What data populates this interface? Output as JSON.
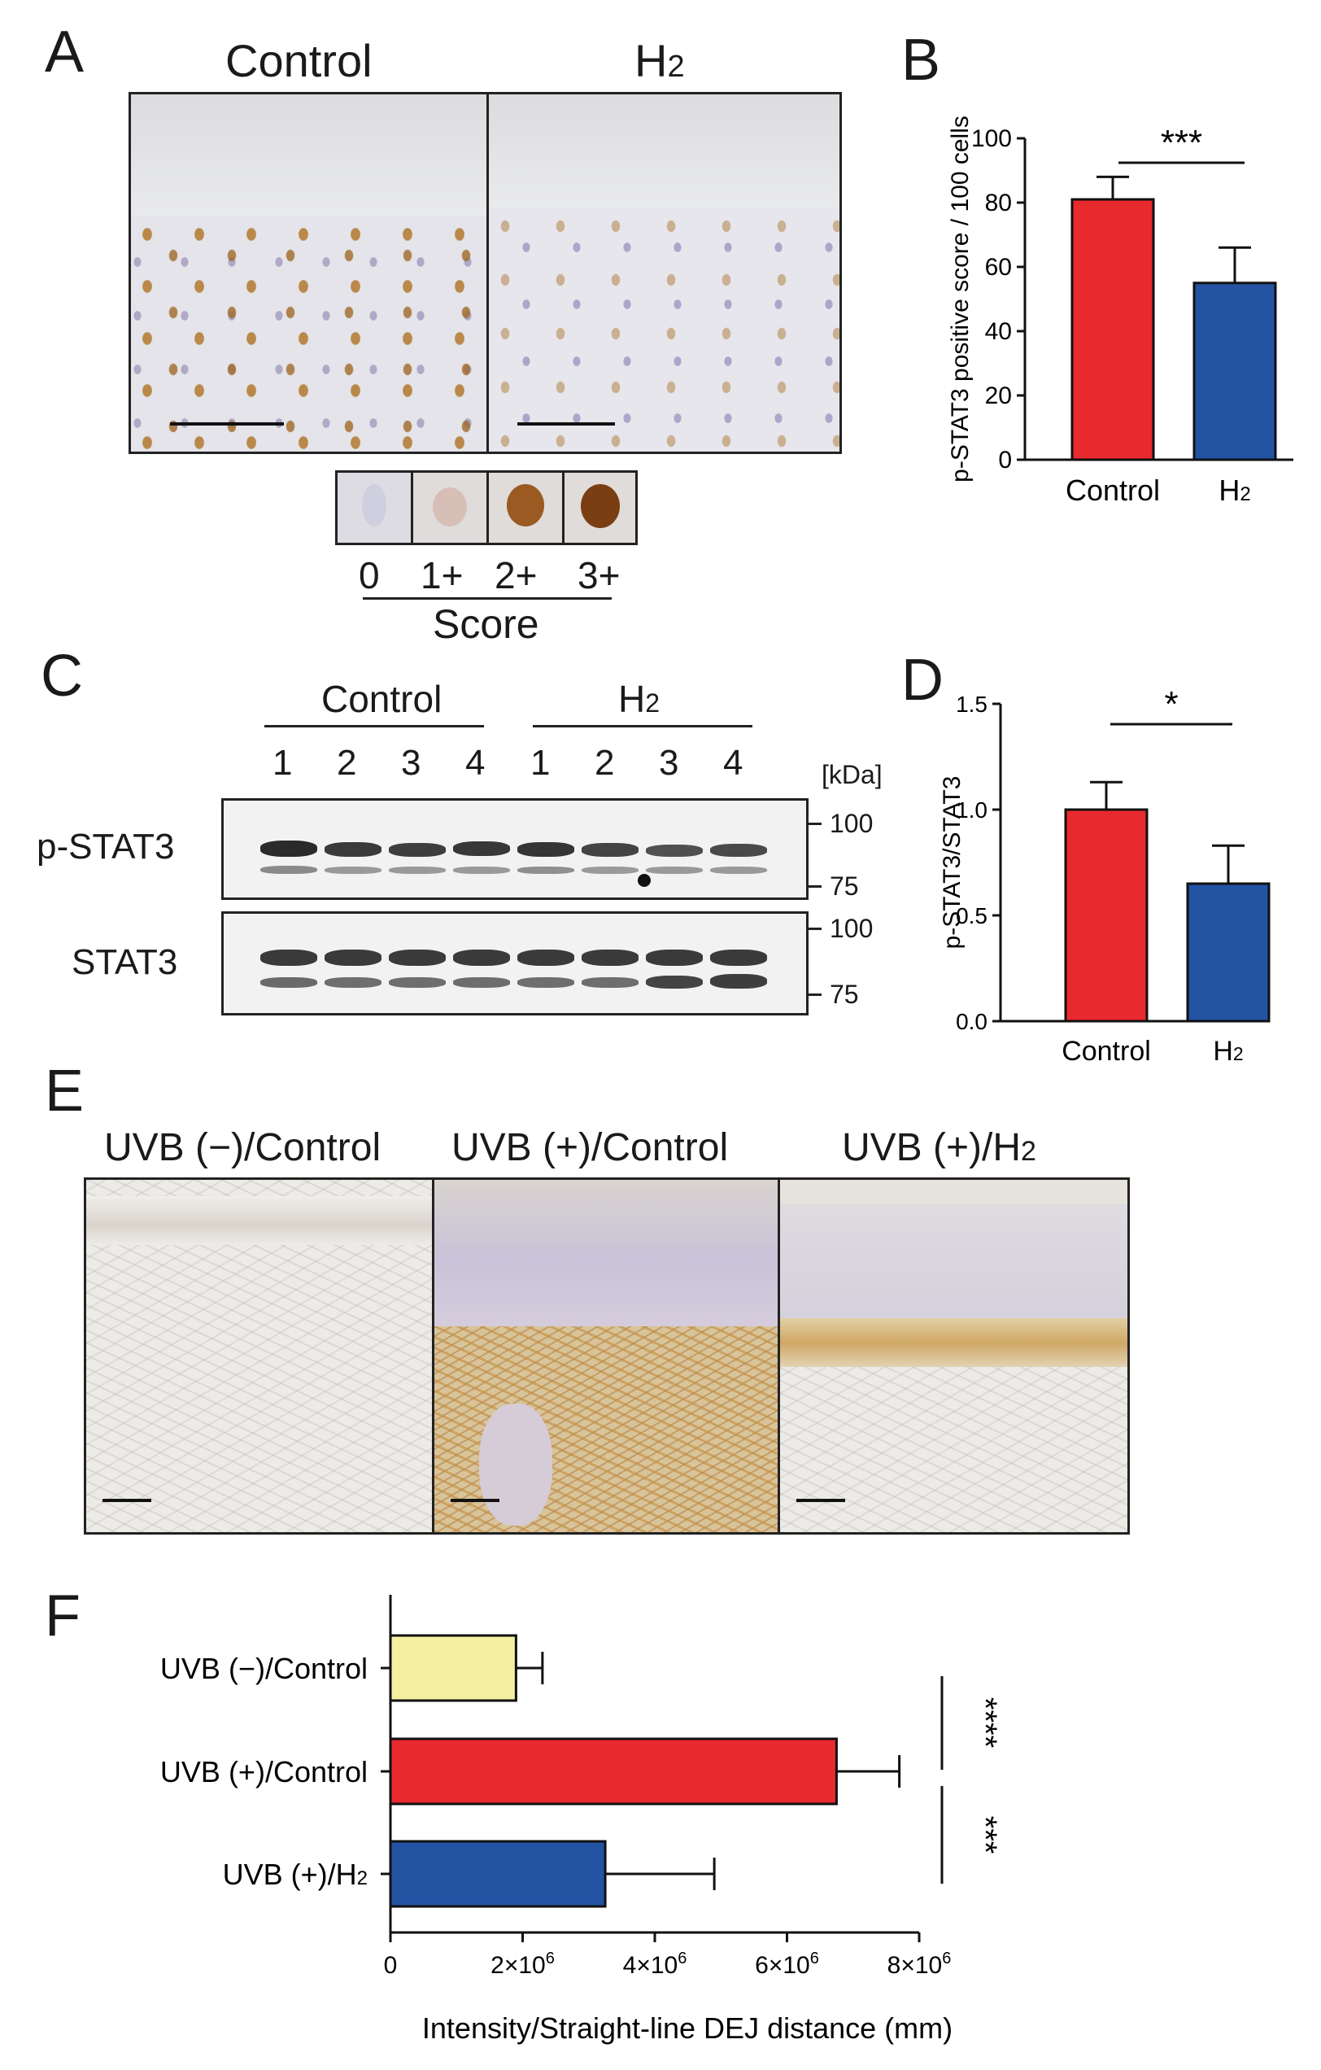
{
  "panel_letters": {
    "a": "A",
    "b": "B",
    "c": "C",
    "d": "D",
    "e": "E",
    "f": "F"
  },
  "panel_a": {
    "col_control": "Control",
    "col_h2": "H",
    "col_h2_sub": "2",
    "score_labels": [
      "0",
      "1+",
      "2+",
      "3+"
    ],
    "score_title": "Score"
  },
  "panel_c": {
    "group_control": "Control",
    "group_h2": "H",
    "group_h2_sub": "2",
    "lanes": [
      "1",
      "2",
      "3",
      "4",
      "1",
      "2",
      "3",
      "4"
    ],
    "kda_label": "[kDa]",
    "row_pstat3": "p-STAT3",
    "row_stat3": "STAT3",
    "markers_top": [
      "100",
      "75"
    ],
    "markers_bottom": [
      "100",
      "75"
    ]
  },
  "panel_e": {
    "titles": [
      "UVB (−)/Control",
      "UVB (+)/Control",
      "UVB (+)/H"
    ],
    "h2_sub": "2"
  },
  "colors": {
    "control": "#e8292e",
    "h2": "#2353a3",
    "uvb_neg": "#f5f0a0"
  },
  "chart_data": [
    {
      "panel": "B",
      "type": "bar",
      "categories": [
        "Control",
        "H2"
      ],
      "category_labels": [
        "Control",
        "H₂"
      ],
      "values": [
        81,
        55
      ],
      "errors": [
        7,
        11
      ],
      "ylabel": "p-STAT3 positive score / 100 cells",
      "ylim": [
        0,
        100
      ],
      "yticks": [
        "0",
        "20",
        "40",
        "60",
        "80",
        "100"
      ],
      "significance": "***"
    },
    {
      "panel": "D",
      "type": "bar",
      "categories": [
        "Control",
        "H2"
      ],
      "category_labels": [
        "Control",
        "H₂"
      ],
      "values": [
        1.0,
        0.65
      ],
      "errors": [
        0.13,
        0.18
      ],
      "ylabel": "p-STAT3/STAT3",
      "ylim": [
        0,
        1.5
      ],
      "yticks": [
        "0.0",
        "0.5",
        "1.0",
        "1.5"
      ],
      "significance": "*"
    },
    {
      "panel": "F",
      "type": "bar",
      "orientation": "horizontal",
      "categories": [
        "UVB (−)/Control",
        "UVB (+)/Control",
        "UVB (+)/H2"
      ],
      "category_labels": [
        "UVB (−)/Control",
        "UVB (+)/Control",
        "UVB (+)/H₂"
      ],
      "values": [
        1900000,
        6750000,
        3250000
      ],
      "errors": [
        400000,
        950000,
        1650000
      ],
      "xlabel": "Intensity/Straight-line DEJ distance (mm)",
      "xlim": [
        0,
        8000000
      ],
      "xticks": [
        "0",
        "2×10⁶",
        "4×10⁶",
        "6×10⁶",
        "8×10⁶"
      ],
      "significance": [
        "****",
        "***"
      ]
    }
  ]
}
